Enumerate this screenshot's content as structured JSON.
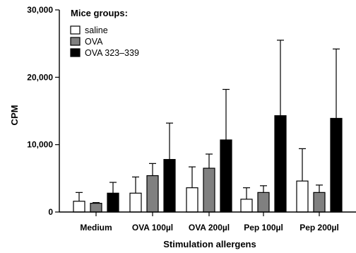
{
  "chart_data": {
    "type": "bar",
    "xlabel": "Stimulation allergens",
    "ylabel": "CPM",
    "ylim": [
      0,
      30000
    ],
    "yticks": [
      0,
      10000,
      20000,
      30000
    ],
    "ytick_labels": [
      "0",
      "10,000",
      "20,000",
      "30,000"
    ],
    "categories": [
      "Medium",
      "OVA 100µl",
      "OVA 200µl",
      "Pep 100µl",
      "Pep 200µl"
    ],
    "legend": {
      "title": "Mice groups:",
      "placement": "top-left"
    },
    "error_bars": "upper",
    "series": [
      {
        "name": "saline",
        "color": "#ffffff",
        "values": [
          1600,
          2800,
          3600,
          1900,
          4600
        ],
        "errors": [
          1300,
          2400,
          3100,
          1700,
          4800
        ]
      },
      {
        "name": "OVA",
        "color": "#808080",
        "values": [
          1300,
          5400,
          6500,
          2900,
          2900
        ],
        "errors": [
          100,
          1800,
          2100,
          1000,
          1100
        ]
      },
      {
        "name": "OVA 323–339",
        "color": "#000000",
        "values": [
          2800,
          7800,
          10700,
          14300,
          13900
        ],
        "errors": [
          1600,
          5400,
          7500,
          11200,
          10300
        ]
      }
    ]
  }
}
